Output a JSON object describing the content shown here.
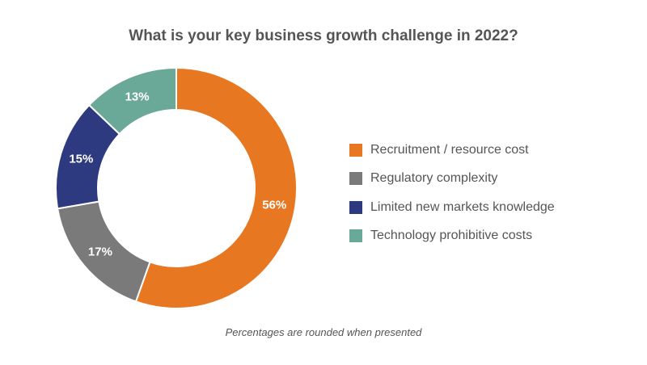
{
  "chart_data": {
    "type": "pie",
    "title": "What is your key business growth challenge in 2022?",
    "categories": [
      "Recruitment / resource cost",
      "Regulatory complexity",
      "Limited new markets knowledge",
      "Technology prohibitive costs"
    ],
    "values": [
      56,
      17,
      15,
      13
    ],
    "labels": [
      "56%",
      "17%",
      "15%",
      "13%"
    ],
    "colors": [
      "#e87722",
      "#7a7a7a",
      "#2e3a80",
      "#6aa898"
    ],
    "donut": true,
    "legend_position": "right",
    "footnote": "Percentages are rounded when presented"
  }
}
